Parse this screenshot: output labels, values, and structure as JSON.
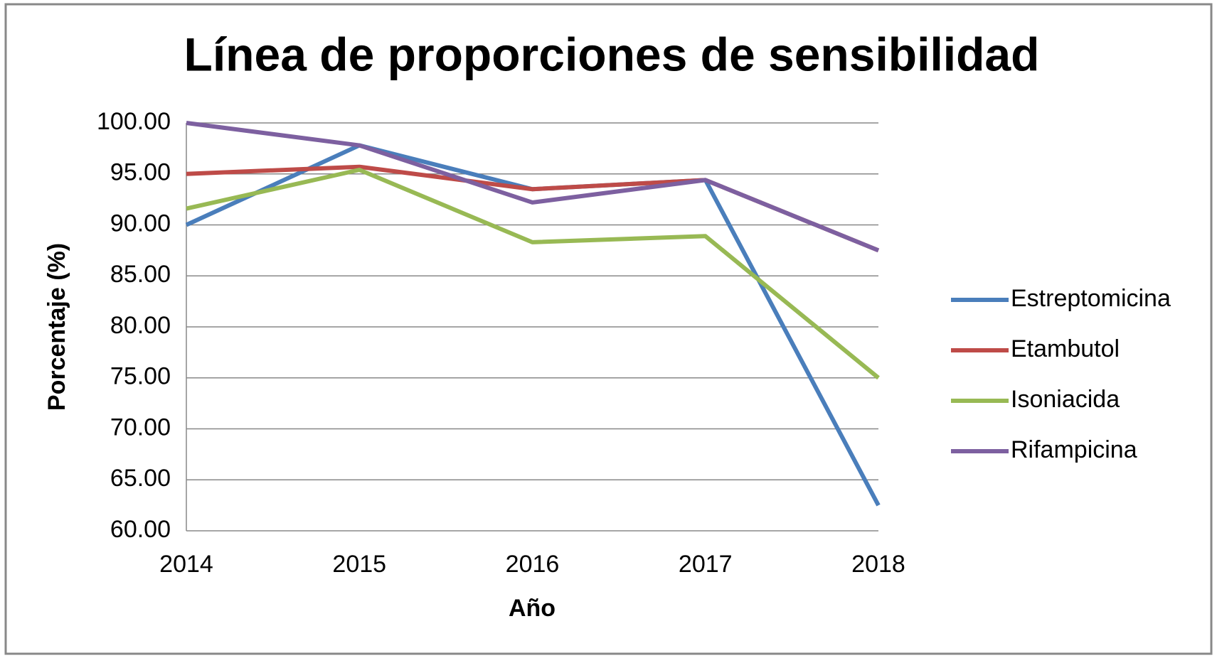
{
  "chart_data": {
    "type": "line",
    "title": "Línea de proporciones de sensibilidad",
    "x_label": "Año",
    "y_label": "Porcentaje (%)",
    "categories": [
      "2014",
      "2015",
      "2016",
      "2017",
      "2018"
    ],
    "series": [
      {
        "name": "Estreptomicina",
        "color": "#4a7ebb",
        "values": [
          90.0,
          97.8,
          93.5,
          94.4,
          62.5
        ]
      },
      {
        "name": "Etambutol",
        "color": "#be4b48",
        "values": [
          95.0,
          95.7,
          93.5,
          94.4,
          87.5
        ]
      },
      {
        "name": "Isoniacida",
        "color": "#98b954",
        "values": [
          91.6,
          95.4,
          88.3,
          88.9,
          75.0
        ]
      },
      {
        "name": "Rifampicina",
        "color": "#7d60a0",
        "values": [
          100.0,
          97.8,
          92.2,
          94.4,
          87.5
        ]
      }
    ],
    "ylim": [
      60,
      100
    ],
    "yticks": [
      {
        "value": 60,
        "label": "60.00"
      },
      {
        "value": 65,
        "label": "65.00"
      },
      {
        "value": 70,
        "label": "70.00"
      },
      {
        "value": 75,
        "label": "75.00"
      },
      {
        "value": 80,
        "label": "80.00"
      },
      {
        "value": 85,
        "label": "85.00"
      },
      {
        "value": 90,
        "label": "90.00"
      },
      {
        "value": 95,
        "label": "95.00"
      },
      {
        "value": 100,
        "label": "100.00"
      }
    ],
    "grid": true,
    "legend": "right"
  }
}
